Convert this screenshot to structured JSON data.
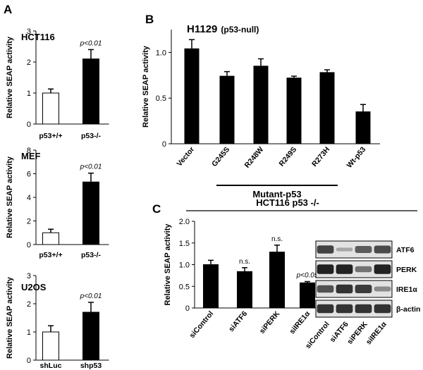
{
  "panels": {
    "A": "A",
    "B": "B",
    "C": "C"
  },
  "chart_data": [
    {
      "id": "A1",
      "type": "bar",
      "title": "HCT116",
      "ylabel": "Relative SEAP activity",
      "categories": [
        "p53+/+",
        "p53-/-"
      ],
      "values": [
        1.0,
        2.1
      ],
      "errors": [
        0.13,
        0.3
      ],
      "fills": [
        "#ffffff",
        "#000000"
      ],
      "ylim": [
        0,
        3
      ],
      "yticks": [
        0,
        1,
        2,
        3
      ],
      "annotations": [
        "",
        "p<0.01"
      ]
    },
    {
      "id": "A2",
      "type": "bar",
      "title": "MEF",
      "ylabel": "Relative SEAP activity",
      "categories": [
        "p53+/+",
        "p53-/-"
      ],
      "values": [
        1.0,
        5.3
      ],
      "errors": [
        0.3,
        0.75
      ],
      "fills": [
        "#ffffff",
        "#000000"
      ],
      "ylim": [
        0,
        8
      ],
      "yticks": [
        0,
        2,
        4,
        6,
        8
      ],
      "annotations": [
        "",
        "p<0.01"
      ]
    },
    {
      "id": "A3",
      "type": "bar",
      "title": "U2OS",
      "ylabel": "Relative SEAP activity",
      "categories": [
        "shLuc",
        "shp53"
      ],
      "values": [
        1.0,
        1.7
      ],
      "errors": [
        0.22,
        0.35
      ],
      "fills": [
        "#ffffff",
        "#000000"
      ],
      "ylim": [
        0,
        3
      ],
      "yticks": [
        0,
        1,
        2,
        3
      ],
      "annotations": [
        "",
        "p<0.01"
      ]
    },
    {
      "id": "B",
      "type": "bar",
      "title": "H1129",
      "subtitle": "(p53-null)",
      "ylabel": "Relative SEAP activity",
      "categories": [
        "Vector",
        "G245S",
        "R248W",
        "R249S",
        "R273H",
        "Wt-p53"
      ],
      "values": [
        1.04,
        0.74,
        0.85,
        0.72,
        0.78,
        0.35
      ],
      "errors": [
        0.1,
        0.05,
        0.08,
        0.02,
        0.03,
        0.08
      ],
      "fills": [
        "#000000",
        "#000000",
        "#000000",
        "#000000",
        "#000000",
        "#000000"
      ],
      "ylim": [
        0,
        1.25
      ],
      "yticks": [
        0,
        0.5,
        1.0
      ],
      "ytick_labels": [
        "0",
        "0.5",
        "1.0"
      ],
      "group_label": "Mutant-p53"
    },
    {
      "id": "C",
      "type": "bar",
      "title": "HCT116 p53 -/-",
      "ylabel": "Relative SEAP activity",
      "categories": [
        "siControl",
        "siATF6",
        "siPERK",
        "siIRE1α"
      ],
      "values": [
        1.0,
        0.84,
        1.29,
        0.58
      ],
      "errors": [
        0.1,
        0.09,
        0.16,
        0.03
      ],
      "fills": [
        "#000000",
        "#000000",
        "#000000",
        "#000000"
      ],
      "ylim": [
        0,
        2.0
      ],
      "yticks": [
        0,
        0.5,
        1.0,
        1.5,
        2.0
      ],
      "ytick_labels": [
        "0",
        "0.5",
        "1.0",
        "1.5",
        "2.0"
      ],
      "annotations": [
        "",
        "n.s.",
        "n.s.",
        "p<0.05"
      ]
    }
  ],
  "blot": {
    "bands": [
      "ATF6",
      "PERK",
      "IRE1α",
      "β-actin"
    ],
    "lanes": [
      "siControl",
      "siATF6",
      "siPERK",
      "siIRE1α"
    ],
    "intensity": [
      [
        0.75,
        0.12,
        0.6,
        0.7
      ],
      [
        0.95,
        0.95,
        0.45,
        0.95
      ],
      [
        0.65,
        0.85,
        0.8,
        0.3
      ],
      [
        0.85,
        0.85,
        0.85,
        0.85
      ]
    ],
    "band_color": "#1a1a1a",
    "background_color": "#e2e2e2"
  }
}
